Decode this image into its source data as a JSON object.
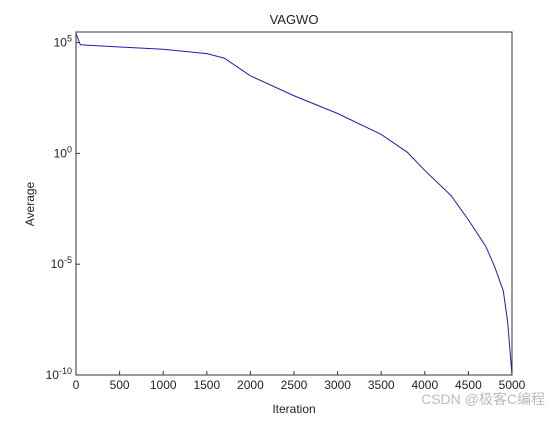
{
  "chart_data": {
    "type": "line",
    "title": "VAGWO",
    "x_label": "Iteration",
    "y_label": "Average",
    "x": [
      0,
      50,
      500,
      1000,
      1500,
      1700,
      2000,
      2500,
      3000,
      3500,
      3800,
      4000,
      4300,
      4500,
      4700,
      4800,
      4900,
      4950,
      5000
    ],
    "series": [
      {
        "name": "VAGWO",
        "color": "#1f1fa8",
        "values": [
          251189,
          79433,
          63096,
          50119,
          31623,
          19953,
          3162,
          398,
          63,
          7.2,
          1.12,
          0.17,
          0.0126,
          0.001,
          6.3e-05,
          7.9e-06,
          6.3e-07,
          2.5e-08,
          1e-10
        ]
      }
    ],
    "xlim": [
      0,
      5000
    ],
    "xticks": [
      0,
      500,
      1000,
      1500,
      2000,
      2500,
      3000,
      3500,
      4000,
      4500,
      5000
    ],
    "ylim": [
      1e-10,
      300000
    ],
    "log_y": true,
    "yticks": [
      {
        "value": 1e-10,
        "label": "10^-10"
      },
      {
        "value": 1e-05,
        "label": "10^-5"
      },
      {
        "value": 1,
        "label": "10^0"
      },
      {
        "value": 100000,
        "label": "10^5"
      }
    ],
    "watermark": "CSDN @极客C编程"
  }
}
